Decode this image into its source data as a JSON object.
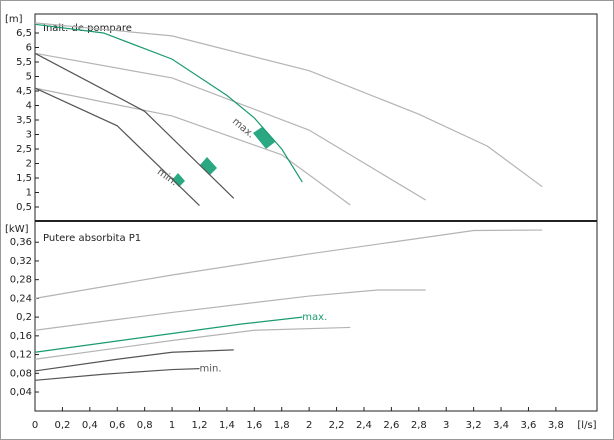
{
  "chart_data": [
    {
      "type": "line",
      "title": "Inalt. de pompare",
      "y_label": "[m]",
      "xlim": [
        0,
        4.1
      ],
      "ylim": [
        0,
        7.1
      ],
      "yticks": [
        {
          "value": 0.5,
          "label": "0,5"
        },
        1,
        {
          "value": 1.5,
          "label": "1,5"
        },
        2,
        {
          "value": 2.5,
          "label": "2,5"
        },
        3,
        {
          "value": 3.5,
          "label": "3,5"
        },
        4,
        {
          "value": 4.5,
          "label": "4,5"
        },
        5,
        {
          "value": 5.5,
          "label": "5,5"
        },
        6,
        {
          "value": 6.5,
          "label": "6,5"
        }
      ],
      "series": [
        {
          "color": "#b4b4b4",
          "x": [
            0,
            1,
            2,
            2.8,
            3.3,
            3.7
          ],
          "values": [
            6.85,
            6.4,
            5.2,
            3.7,
            2.6,
            1.2
          ]
        },
        {
          "color": "#b4b4b4",
          "x": [
            0,
            1,
            2,
            2.85
          ],
          "values": [
            5.8,
            4.95,
            3.15,
            0.74
          ]
        },
        {
          "color": "#b4b4b4",
          "x": [
            0,
            1,
            1.8,
            2.3
          ],
          "values": [
            4.6,
            3.64,
            2.3,
            0.57
          ]
        },
        {
          "color": "#555555",
          "x": [
            0,
            0.8,
            1.45
          ],
          "values": [
            5.8,
            3.8,
            0.8
          ]
        },
        {
          "color": "#555555",
          "x": [
            0,
            0.6,
            1.2
          ],
          "values": [
            4.6,
            3.3,
            0.55
          ]
        },
        {
          "color": "#1a9a72",
          "x": [
            0,
            0.5,
            1,
            1.4,
            1.6,
            1.8,
            1.95
          ],
          "values": [
            6.8,
            6.5,
            5.6,
            4.35,
            3.57,
            2.5,
            1.36
          ]
        }
      ],
      "annotations": [
        "max.",
        "min."
      ]
    },
    {
      "type": "line",
      "title": "Putere absorbita P1",
      "y_label": "[kW]",
      "x_label": "[l/s]",
      "xlim": [
        0,
        4.1
      ],
      "ylim": [
        0,
        0.4
      ],
      "xticks": [
        0,
        {
          "value": 0.2,
          "label": "0,2"
        },
        {
          "value": 0.4,
          "label": "0,4"
        },
        {
          "value": 0.6,
          "label": "0,6"
        },
        {
          "value": 0.8,
          "label": "0,8"
        },
        1,
        {
          "value": 1.2,
          "label": "1,2"
        },
        {
          "value": 1.4,
          "label": "1,4"
        },
        {
          "value": 1.6,
          "label": "1,6"
        },
        {
          "value": 1.8,
          "label": "1,8"
        },
        2,
        {
          "value": 2.2,
          "label": "2,2"
        },
        {
          "value": 2.4,
          "label": "2,4"
        },
        {
          "value": 2.6,
          "label": "2,6"
        },
        {
          "value": 2.8,
          "label": "2,8"
        },
        3,
        {
          "value": 3.2,
          "label": "3,2"
        },
        {
          "value": 3.4,
          "label": "3,4"
        },
        {
          "value": 3.6,
          "label": "3,6"
        },
        {
          "value": 3.8,
          "label": "3,8"
        }
      ],
      "yticks": [
        {
          "value": 0.04,
          "label": "0,04"
        },
        {
          "value": 0.08,
          "label": "0,08"
        },
        {
          "value": 0.12,
          "label": "0,12"
        },
        {
          "value": 0.16,
          "label": "0,16"
        },
        {
          "value": 0.2,
          "label": "0,2"
        },
        {
          "value": 0.24,
          "label": "0,24"
        },
        {
          "value": 0.28,
          "label": "0,28"
        },
        {
          "value": 0.32,
          "label": "0,32"
        },
        {
          "value": 0.36,
          "label": "0,36"
        }
      ],
      "series": [
        {
          "color": "#b4b4b4",
          "x": [
            0,
            1,
            2,
            2.6,
            3.2,
            3.7
          ],
          "values": [
            0.24,
            0.29,
            0.335,
            0.36,
            0.385,
            0.386
          ]
        },
        {
          "color": "#b4b4b4",
          "x": [
            0,
            1,
            2,
            2.5,
            2.85
          ],
          "values": [
            0.172,
            0.21,
            0.245,
            0.258,
            0.258
          ]
        },
        {
          "color": "#b4b4b4",
          "x": [
            0,
            1,
            1.6,
            2.3
          ],
          "values": [
            0.11,
            0.15,
            0.172,
            0.178
          ]
        },
        {
          "color": "#555555",
          "x": [
            0,
            0.6,
            1,
            1.45
          ],
          "values": [
            0.085,
            0.11,
            0.125,
            0.13
          ]
        },
        {
          "color": "#555555",
          "x": [
            0,
            0.5,
            1,
            1.2
          ],
          "values": [
            0.065,
            0.078,
            0.088,
            0.09
          ]
        },
        {
          "color": "#1a9a72",
          "x": [
            0,
            0.5,
            1,
            1.5,
            1.95
          ],
          "values": [
            0.125,
            0.145,
            0.165,
            0.185,
            0.2
          ]
        }
      ],
      "annotations": [
        "max.",
        "min."
      ]
    }
  ]
}
